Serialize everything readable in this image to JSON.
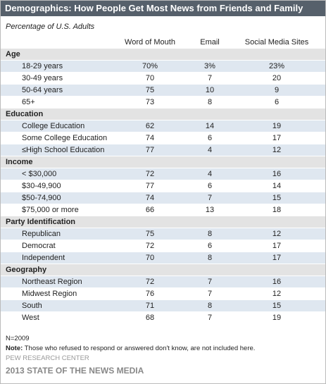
{
  "header": {
    "title": "Demographics: How People Get Most News from Friends and Family",
    "subtitle": "Percentage of U.S. Adults"
  },
  "table": {
    "columns": [
      "Word of Mouth",
      "Email",
      "Social Media Sites"
    ],
    "sections": [
      {
        "name": "Age",
        "rows": [
          [
            "18-29 years",
            "70%",
            "3%",
            "23%"
          ],
          [
            "30-49 years",
            "70",
            "7",
            "20"
          ],
          [
            "50-64 years",
            "75",
            "10",
            "9"
          ],
          [
            "65+",
            "73",
            "8",
            "6"
          ]
        ]
      },
      {
        "name": "Education",
        "rows": [
          [
            "College Education",
            "62",
            "14",
            "19"
          ],
          [
            "Some College Education",
            "74",
            "6",
            "17"
          ],
          [
            "≤High School Education",
            "77",
            "4",
            "12"
          ]
        ]
      },
      {
        "name": "Income",
        "rows": [
          [
            "< $30,000",
            "72",
            "4",
            "16"
          ],
          [
            "$30-49,900",
            "77",
            "6",
            "14"
          ],
          [
            "$50-74,900",
            "74",
            "7",
            "15"
          ],
          [
            "$75,000 or more",
            "66",
            "13",
            "18"
          ]
        ]
      },
      {
        "name": "Party Identification",
        "rows": [
          [
            "Republican",
            "75",
            "8",
            "12"
          ],
          [
            "Democrat",
            "72",
            "6",
            "17"
          ],
          [
            "Independent",
            "70",
            "8",
            "17"
          ]
        ]
      },
      {
        "name": "Geography",
        "rows": [
          [
            "Northeast Region",
            "72",
            "7",
            "16"
          ],
          [
            "Midwest Region",
            "76",
            "7",
            "12"
          ],
          [
            "South",
            "71",
            "8",
            "15"
          ],
          [
            "West",
            "68",
            "7",
            "19"
          ]
        ]
      }
    ]
  },
  "footer": {
    "n": "N=2009",
    "note_label": "Note:",
    "note": "Those who refused to respond or answered don't know, are not included here.",
    "source": "PEW RESEARCH CENTER",
    "publication": "2013 STATE OF THE NEWS MEDIA"
  }
}
